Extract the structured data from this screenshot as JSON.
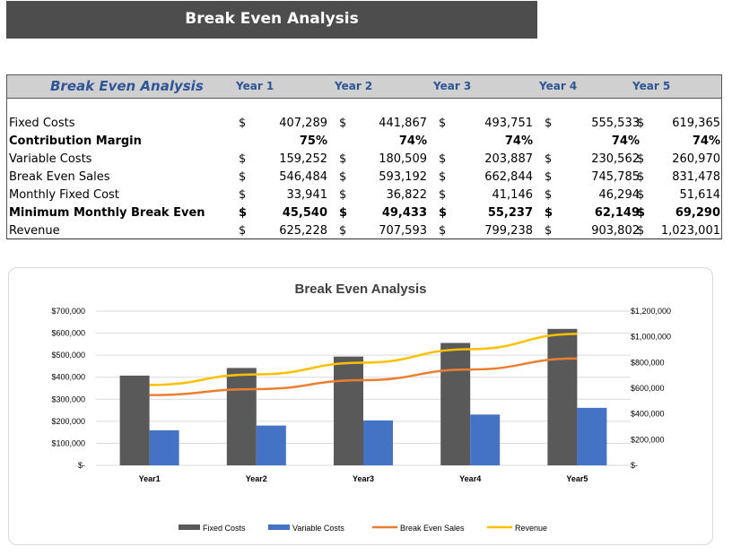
{
  "banner": {
    "title": "Break Even Analysis"
  },
  "table": {
    "header_title": "Break Even Analysis",
    "years": [
      "Year 1",
      "Year 2",
      "Year 3",
      "Year 4",
      "Year 5"
    ],
    "rows": [
      {
        "label": "Fixed Costs",
        "bold": false,
        "currency": true,
        "values": [
          "407,289",
          "441,867",
          "493,751",
          "555,533",
          "619,365"
        ]
      },
      {
        "label": "Contribution Margin",
        "bold": true,
        "currency": false,
        "values": [
          "75%",
          "74%",
          "74%",
          "74%",
          "74%"
        ]
      },
      {
        "label": "Variable Costs",
        "bold": false,
        "currency": true,
        "values": [
          "159,252",
          "180,509",
          "203,887",
          "230,562",
          "260,970"
        ]
      },
      {
        "label": "Break Even Sales",
        "bold": false,
        "currency": true,
        "values": [
          "546,484",
          "593,192",
          "662,844",
          "745,785",
          "831,478"
        ]
      },
      {
        "label": "Monthly Fixed Cost",
        "bold": false,
        "currency": true,
        "values": [
          "33,941",
          "36,822",
          "41,146",
          "46,294",
          "51,614"
        ]
      },
      {
        "label": "Minimum Monthly Break Even",
        "bold": true,
        "currency": true,
        "values": [
          "45,540",
          "49,433",
          "55,237",
          "62,149",
          "69,290"
        ]
      },
      {
        "label": "Revenue",
        "bold": false,
        "currency": true,
        "values": [
          "625,228",
          "707,593",
          "799,238",
          "903,802",
          "1,023,001"
        ]
      }
    ],
    "currency_symbol": "$"
  },
  "chart_data": {
    "type": "bar",
    "title": "Break Even Analysis",
    "categories": [
      "Year1",
      "Year2",
      "Year3",
      "Year4",
      "Year5"
    ],
    "series": [
      {
        "name": "Fixed Costs",
        "type": "bar",
        "axis": "left",
        "color": "#595959",
        "values": [
          407289,
          441867,
          493751,
          555533,
          619365
        ]
      },
      {
        "name": "Variable Costs",
        "type": "bar",
        "axis": "left",
        "color": "#4472c4",
        "values": [
          159252,
          180509,
          203887,
          230562,
          260970
        ]
      },
      {
        "name": "Break Even Sales",
        "type": "line",
        "axis": "right",
        "color": "#ed7d31",
        "values": [
          546484,
          593192,
          662844,
          745785,
          831478
        ]
      },
      {
        "name": "Revenue",
        "type": "line",
        "axis": "right",
        "color": "#ffc000",
        "values": [
          625228,
          707593,
          799238,
          903802,
          1023001
        ]
      }
    ],
    "y_left": {
      "min": 0,
      "max": 700000,
      "step": 100000,
      "ticks": [
        "$-",
        "$100,000",
        "$200,000",
        "$300,000",
        "$400,000",
        "$500,000",
        "$600,000",
        "$700,000"
      ]
    },
    "y_right": {
      "min": 0,
      "max": 1200000,
      "step": 200000,
      "ticks": [
        "$-",
        "$200,000",
        "$400,000",
        "$600,000",
        "$800,000",
        "$1,000,000",
        "$1,200,000"
      ]
    },
    "grid": true,
    "legend_position": "bottom"
  }
}
